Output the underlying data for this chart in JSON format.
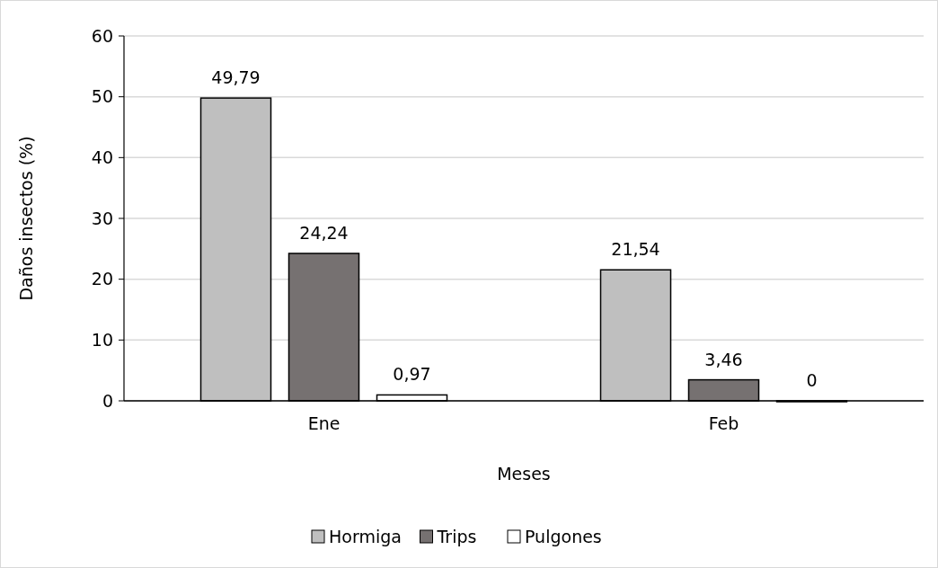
{
  "chart_data": {
    "type": "bar",
    "xlabel": "Meses",
    "ylabel": "Daños insectos (%)",
    "categories": [
      "Ene",
      "Feb"
    ],
    "series": [
      {
        "name": "Hormiga",
        "color": "#bfbfbf",
        "values": [
          49.79,
          21.54
        ],
        "value_labels": [
          "49,79",
          "21,54"
        ]
      },
      {
        "name": "Trips",
        "color": "#767171",
        "values": [
          24.24,
          3.46
        ],
        "value_labels": [
          "24,24",
          "3,46"
        ]
      },
      {
        "name": "Pulgones",
        "color": "#ffffff",
        "values": [
          0.97,
          0
        ],
        "value_labels": [
          "0,97",
          "0"
        ]
      }
    ],
    "ylim": [
      0,
      60
    ],
    "yticks": [
      0,
      10,
      20,
      30,
      40,
      50,
      60
    ],
    "grid": "y",
    "legend": "bottom"
  }
}
